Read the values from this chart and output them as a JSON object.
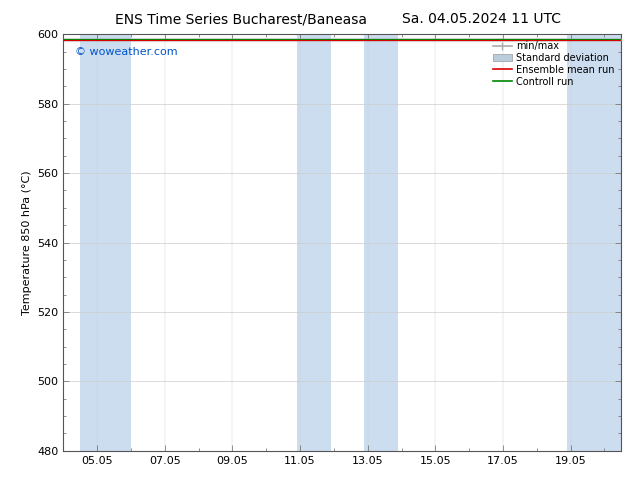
{
  "title_left": "ENS Time Series Bucharest/Baneasa",
  "title_right": "Sa. 04.05.2024 11 UTC",
  "ylabel": "Temperature 850 hPa (°C)",
  "ylim": [
    480,
    600
  ],
  "yticks": [
    480,
    500,
    520,
    540,
    560,
    580,
    600
  ],
  "watermark": "© woweather.com",
  "watermark_color": "#0055cc",
  "bg_color": "#ffffff",
  "plot_bg_color": "#ffffff",
  "band_color": "#ccddf0",
  "legend_items": [
    "min/max",
    "Standard deviation",
    "Ensemble mean run",
    "Controll run"
  ],
  "minmax_color": "#aaaaaa",
  "std_color": "#bbccdd",
  "mean_color": "#dd0000",
  "ctrl_color": "#008800",
  "title_fontsize": 10,
  "axis_fontsize": 8,
  "tick_fontsize": 8,
  "data_y": 598.5,
  "xlim": [
    4.0,
    20.5
  ],
  "xtick_positions": [
    5,
    7,
    9,
    11,
    13,
    15,
    17,
    19
  ],
  "xtick_labels": [
    "05.05",
    "07.05",
    "09.05",
    "11.05",
    "13.05",
    "15.05",
    "17.05",
    "19.05"
  ],
  "band_xranges": [
    [
      4.5,
      6.0
    ],
    [
      10.9,
      11.9
    ],
    [
      12.9,
      13.9
    ],
    [
      18.9,
      20.5
    ]
  ],
  "figwidth": 6.34,
  "figheight": 4.9
}
